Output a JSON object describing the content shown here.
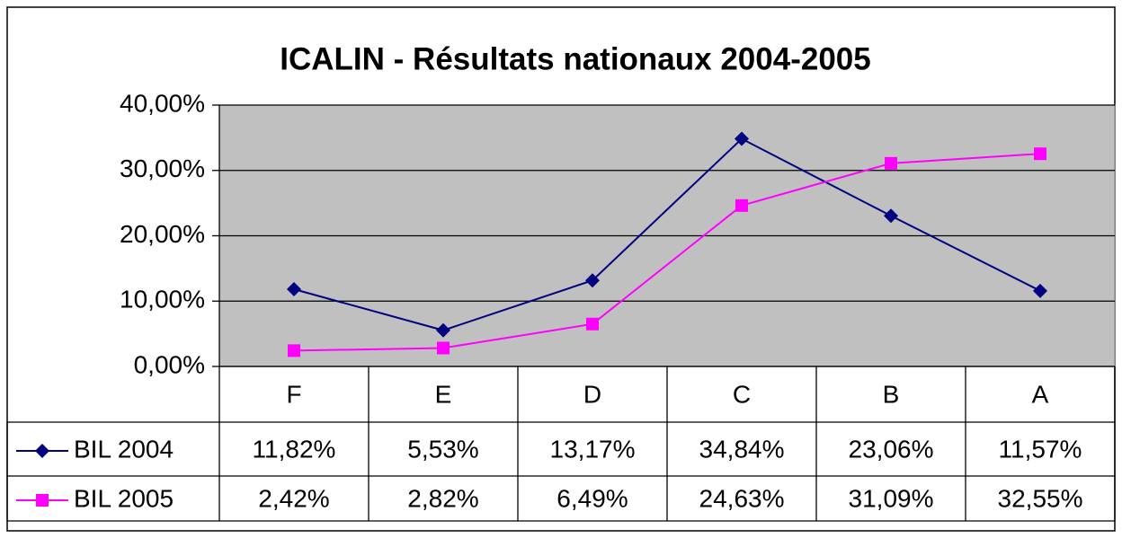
{
  "chart_data": {
    "type": "line",
    "title": "ICALIN - Résultats nationaux 2004-2005",
    "categories": [
      "F",
      "E",
      "D",
      "C",
      "B",
      "A"
    ],
    "series": [
      {
        "name": "BIL 2004",
        "color": "#000080",
        "marker": "diamond",
        "values": [
          11.82,
          5.53,
          13.17,
          34.84,
          23.06,
          11.57
        ],
        "value_labels": [
          "11,82%",
          "5,53%",
          "13,17%",
          "34,84%",
          "23,06%",
          "11,57%"
        ]
      },
      {
        "name": "BIL 2005",
        "color": "#ff00ff",
        "marker": "square",
        "values": [
          2.42,
          2.82,
          6.49,
          24.63,
          31.09,
          32.55
        ],
        "value_labels": [
          "2,42%",
          "2,82%",
          "6,49%",
          "24,63%",
          "31,09%",
          "32,55%"
        ]
      }
    ],
    "ylim": [
      0,
      40
    ],
    "yticks": [
      {
        "value": 0,
        "label": "0,00%"
      },
      {
        "value": 10,
        "label": "10,00%"
      },
      {
        "value": 20,
        "label": "20,00%"
      },
      {
        "value": 30,
        "label": "30,00%"
      },
      {
        "value": 40,
        "label": "40,00%"
      }
    ],
    "grid": true,
    "plot_background": "#c0c0c0"
  }
}
